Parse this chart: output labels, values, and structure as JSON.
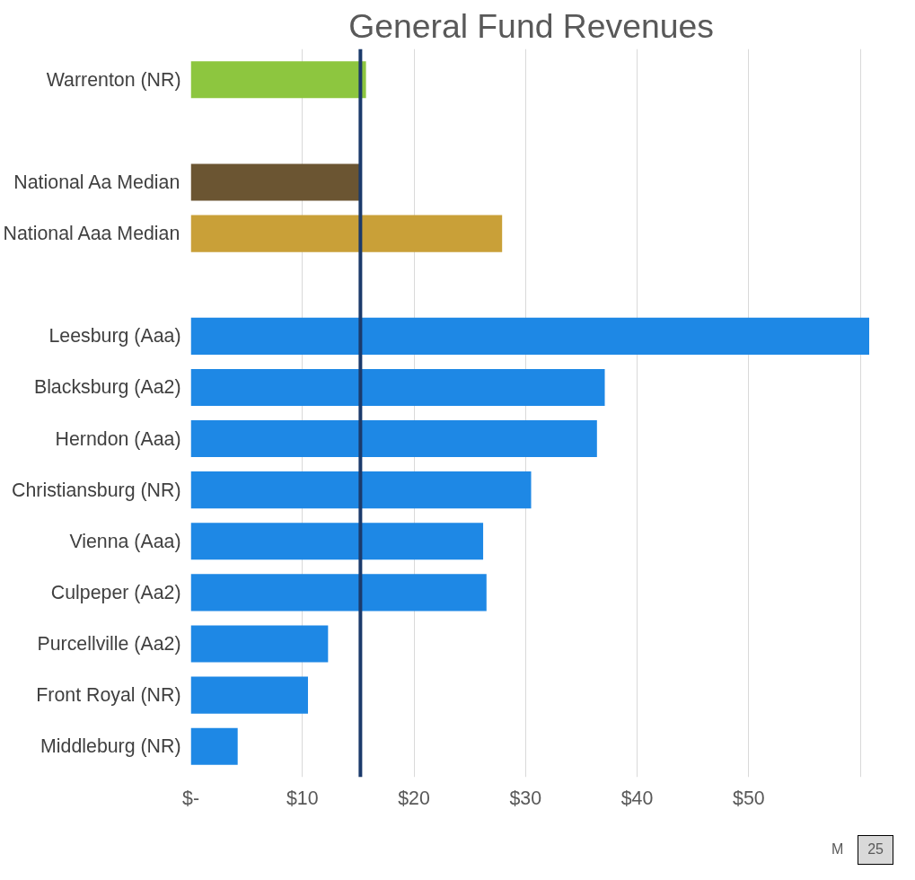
{
  "chart_data": {
    "type": "bar",
    "orientation": "horizontal",
    "title": "General Fund Revenues",
    "categories": [
      "Warrenton (NR)",
      null,
      "National Aa Median",
      "National Aaa Median",
      null,
      "Leesburg (Aaa)",
      "Blacksburg (Aa2)",
      "Herndon (Aaa)",
      "Christiansburg (NR)",
      "Vienna (Aaa)",
      "Culpeper (Aa2)",
      "Purcellville (Aa2)",
      "Front Royal (NR)",
      "Middleburg (NR)"
    ],
    "values": [
      15.7,
      null,
      15.1,
      27.9,
      null,
      60.8,
      37.1,
      36.4,
      30.5,
      26.2,
      26.5,
      12.3,
      10.5,
      4.2
    ],
    "colors": [
      "#8dc63f",
      "#ffffff",
      "#6b5532",
      "#c9a038",
      "#ffffff",
      "#1e88e5",
      "#1e88e5",
      "#1e88e5",
      "#1e88e5",
      "#1e88e5",
      "#1e88e5",
      "#1e88e5",
      "#1e88e5",
      "#1e88e5"
    ],
    "xlim": [
      0,
      61
    ],
    "xticks": [
      {
        "value": 0,
        "label": "$-"
      },
      {
        "value": 10,
        "label": "$10"
      },
      {
        "value": 20,
        "label": "$20"
      },
      {
        "value": 30,
        "label": "$30"
      },
      {
        "value": 40,
        "label": "$40"
      },
      {
        "value": 50,
        "label": "$50"
      },
      {
        "value": 60,
        "label": null
      }
    ],
    "grid": "x",
    "ref_lines": [
      {
        "axis": "x",
        "value": 15.2,
        "label": null,
        "color": "#1b3a6b"
      }
    ],
    "annotations": [
      "M",
      "25"
    ]
  }
}
